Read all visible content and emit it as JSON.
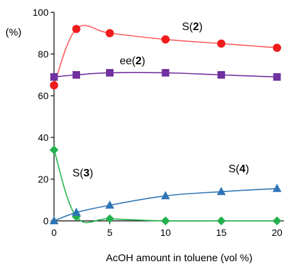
{
  "chart_data": {
    "type": "line",
    "xlabel": "AcOH amount in toluene (vol %)",
    "ylabel": "(%)",
    "xlim": [
      0,
      20
    ],
    "ylim": [
      0,
      100
    ],
    "x_ticks": [
      0,
      5,
      10,
      15,
      20
    ],
    "y_ticks": [
      0,
      20,
      40,
      60,
      80,
      100
    ],
    "grid": false,
    "series": [
      {
        "name": "S(2)",
        "label_prefix": "S(",
        "label_num": "2",
        "label_suffix": ")",
        "color": "#ee1c1c",
        "line_color": "#ff5a5a",
        "marker": "circle",
        "x": [
          0,
          2,
          5,
          10,
          15,
          20
        ],
        "y": [
          65,
          92,
          90,
          87,
          85,
          83
        ]
      },
      {
        "name": "ee(2)",
        "label_prefix": "ee(",
        "label_num": "2",
        "label_suffix": ")",
        "color": "#7030a0",
        "line_color": "#7030a0",
        "marker": "square",
        "x": [
          0,
          2,
          5,
          10,
          15,
          20
        ],
        "y": [
          69,
          70,
          71,
          71,
          70,
          69
        ]
      },
      {
        "name": "S(3)",
        "label_prefix": "S(",
        "label_num": "3",
        "label_suffix": ")",
        "color": "#22b14c",
        "line_color": "#22b14c",
        "marker": "diamond",
        "x": [
          0,
          2,
          5,
          10,
          15,
          20
        ],
        "y": [
          34,
          2,
          1,
          0,
          0,
          0
        ]
      },
      {
        "name": "S(4)",
        "label_prefix": "S(",
        "label_num": "4",
        "label_suffix": ")",
        "color": "#2e75b6",
        "line_color": "#2e75b6",
        "marker": "triangle",
        "x": [
          0,
          2,
          5,
          10,
          15,
          20
        ],
        "y": [
          0,
          4,
          7.5,
          12,
          14,
          15.5
        ]
      }
    ]
  }
}
